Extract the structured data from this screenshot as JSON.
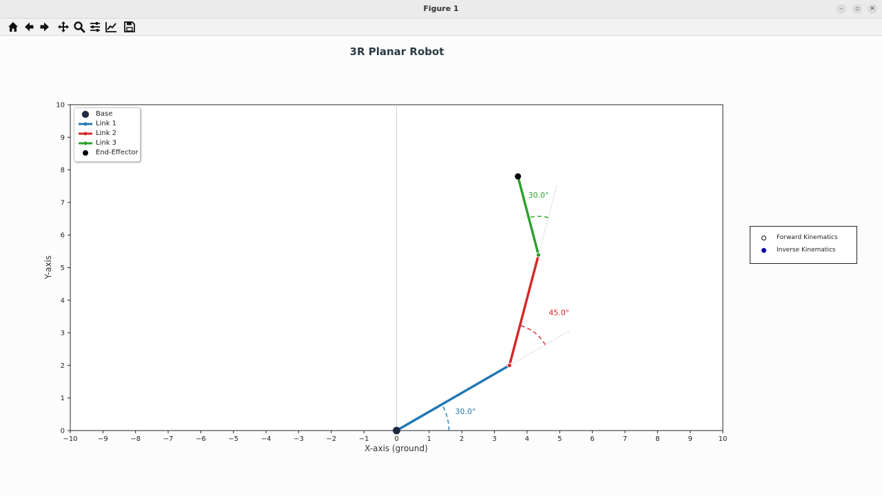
{
  "window": {
    "title": "Figure 1"
  },
  "toolbar": {
    "buttons": [
      "home-icon",
      "back-arrow-icon",
      "forward-arrow-icon",
      "pan-move-icon",
      "zoom-magnifier-icon",
      "configure-subplots-icon",
      "edit-axis-icon",
      "save-floppy-icon"
    ]
  },
  "figure": {
    "title": "3R Planar Robot"
  },
  "chart_data": {
    "type": "line",
    "title": "3R Planar Robot",
    "xlabel": "X-axis (ground)",
    "ylabel": "Y-axis",
    "xlim": [
      -10,
      10
    ],
    "ylim": [
      0,
      10
    ],
    "xticks": [
      "−10",
      "−9",
      "−8",
      "−7",
      "−6",
      "−5",
      "−4",
      "−3",
      "−2",
      "−1",
      "0",
      "1",
      "2",
      "3",
      "4",
      "5",
      "6",
      "7",
      "8",
      "9",
      "10"
    ],
    "yticks": [
      "0",
      "1",
      "2",
      "3",
      "4",
      "5",
      "6",
      "7",
      "8",
      "9",
      "10"
    ],
    "grid": false,
    "legend_position": "upper-left",
    "series": [
      {
        "name": "Base",
        "color": "#1f2a44",
        "points": [
          [
            0,
            0
          ]
        ]
      },
      {
        "name": "Link 1",
        "color": "#1f77b4",
        "points": [
          [
            0,
            0
          ],
          [
            3.46,
            2.0
          ]
        ]
      },
      {
        "name": "Link 2",
        "color": "#d62728",
        "points": [
          [
            3.46,
            2.0
          ],
          [
            4.35,
            5.39
          ]
        ]
      },
      {
        "name": "Link 3",
        "color": "#2ca02c",
        "points": [
          [
            4.35,
            5.39
          ],
          [
            3.72,
            7.8
          ]
        ]
      },
      {
        "name": "End-Effector",
        "color": "#000000",
        "points": [
          [
            3.72,
            7.8
          ]
        ]
      }
    ],
    "joint_angles": [
      {
        "label": "30.0°",
        "color": "#1f77b4"
      },
      {
        "label": "45.0°",
        "color": "#d62728"
      },
      {
        "label": "30.0°",
        "color": "#2ca02c"
      }
    ]
  },
  "side_legend": {
    "items": [
      {
        "label": "Forward Kinematics",
        "color": "#ffffff"
      },
      {
        "label": "Inverse Kinematics",
        "color": "#0000aa"
      }
    ]
  }
}
